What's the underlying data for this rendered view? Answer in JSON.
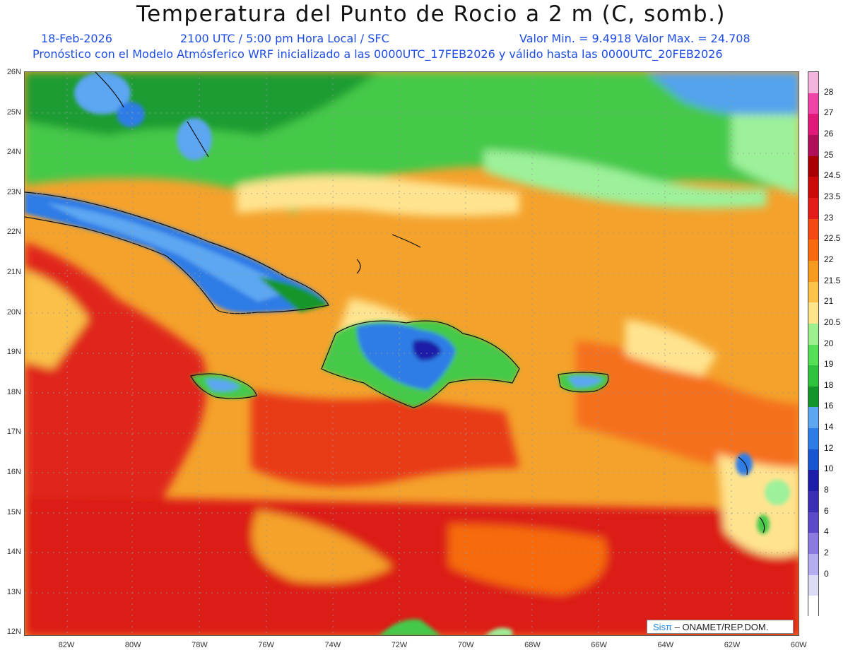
{
  "title": "Temperatura del Punto de Rocio a 2 m (C, somb.)",
  "date": "18-Feb-2026",
  "time": "2100 UTC / 5:00 pm Hora Local / SFC",
  "minmax": "Valor Min. = 9.4918  Valor Max. = 24.708",
  "model": "Pronóstico con el Modelo Atmósferico WRF inicializado a las 0000UTC_17FEB2026 y válido hasta las  0000UTC_20FEB2026",
  "lat_labels": [
    "26N",
    "25N",
    "24N",
    "23N",
    "22N",
    "21N",
    "20N",
    "19N",
    "18N",
    "17N",
    "16N",
    "15N",
    "14N",
    "13N",
    "12N"
  ],
  "lon_labels": [
    "82W",
    "80W",
    "78W",
    "76W",
    "74W",
    "72W",
    "70W",
    "68W",
    "66W",
    "64W",
    "62W",
    "60W"
  ],
  "colorbar": {
    "labels": [
      "28",
      "27",
      "26",
      "25",
      "24.5",
      "23.5",
      "23",
      "22.5",
      "22",
      "21.5",
      "21",
      "20.5",
      "20",
      "19",
      "18",
      "16",
      "14",
      "12",
      "10",
      "8",
      "6",
      "4",
      "2",
      "0"
    ],
    "colors": [
      "#f2b6dc",
      "#ee44a8",
      "#e01a7a",
      "#b0105a",
      "#a80000",
      "#cc0a0a",
      "#e41b1b",
      "#f24a12",
      "#f76a10",
      "#f89a20",
      "#fcc24a",
      "#ffe48c",
      "#9ef08e",
      "#55df55",
      "#2fc23f",
      "#12962a",
      "#5ca6f2",
      "#2e7de6",
      "#1856cf",
      "#1d1ea8",
      "#3a2fb4",
      "#5a4ac8",
      "#8b7be0",
      "#b6acf0",
      "#dcdcf6",
      "#ffffff"
    ],
    "brand": "Sisπ",
    "credit": "– ONAMET/REP.DOM."
  }
}
